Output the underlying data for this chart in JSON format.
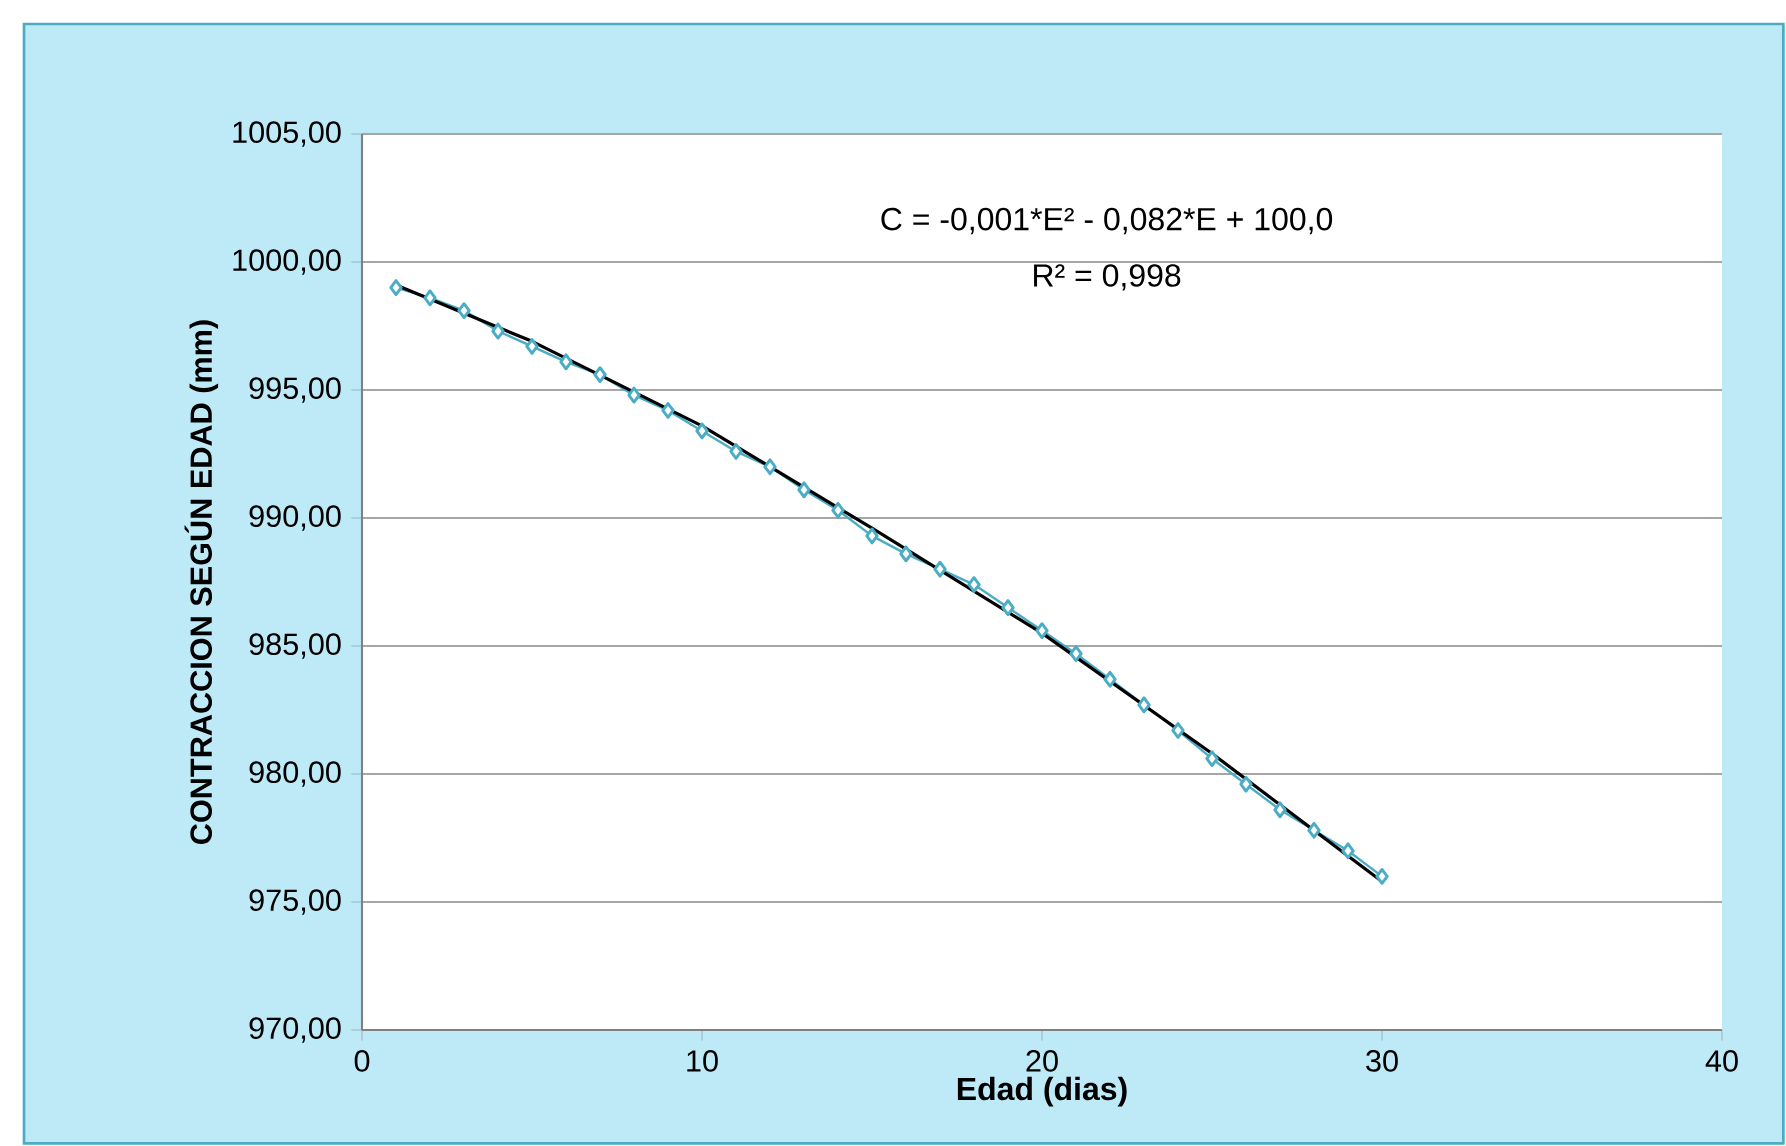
{
  "chart_data": {
    "type": "line",
    "xlabel": "Edad (dias)",
    "ylabel": "CONTRACCION SEGÚN EDAD (mm)",
    "annotations": [
      "C = -0,001*E² - 0,082*E + 100,0",
      "R² = 0,998"
    ],
    "xlim": [
      0,
      40
    ],
    "xticks": [
      0,
      10,
      20,
      30,
      40
    ],
    "ylim": [
      970,
      1005
    ],
    "yticks": [
      {
        "value": 970,
        "label": "970,00"
      },
      {
        "value": 975,
        "label": "975,00"
      },
      {
        "value": 980,
        "label": "980,00"
      },
      {
        "value": 985,
        "label": "985,00"
      },
      {
        "value": 990,
        "label": "990,00"
      },
      {
        "value": 995,
        "label": "995,00"
      },
      {
        "value": 1000,
        "label": "1000,00"
      },
      {
        "value": 1005,
        "label": "1005,00"
      }
    ],
    "grid": "y",
    "series": [
      {
        "color": "#4bacc6",
        "marker": "diamond",
        "line_style": "solid",
        "x": [
          1,
          2,
          3,
          4,
          5,
          6,
          7,
          8,
          9,
          10,
          11,
          12,
          13,
          14,
          15,
          16,
          17,
          18,
          19,
          20,
          21,
          22,
          23,
          24,
          25,
          26,
          27,
          28,
          29,
          30
        ],
        "values": [
          999.0,
          998.6,
          998.1,
          997.3,
          996.7,
          996.1,
          995.6,
          994.8,
          994.2,
          993.4,
          992.6,
          992.0,
          991.1,
          990.3,
          989.3,
          988.6,
          988.0,
          987.4,
          986.5,
          985.6,
          984.7,
          983.7,
          982.7,
          981.7,
          980.6,
          979.6,
          978.6,
          977.8,
          977.0,
          976.0
        ]
      },
      {
        "color": "#000000",
        "marker": "none",
        "line_style": "solid",
        "x": [
          1,
          5,
          10,
          15,
          20,
          25,
          30
        ],
        "values": [
          999.1,
          996.9,
          993.6,
          989.6,
          985.5,
          980.8,
          975.8
        ]
      }
    ]
  }
}
